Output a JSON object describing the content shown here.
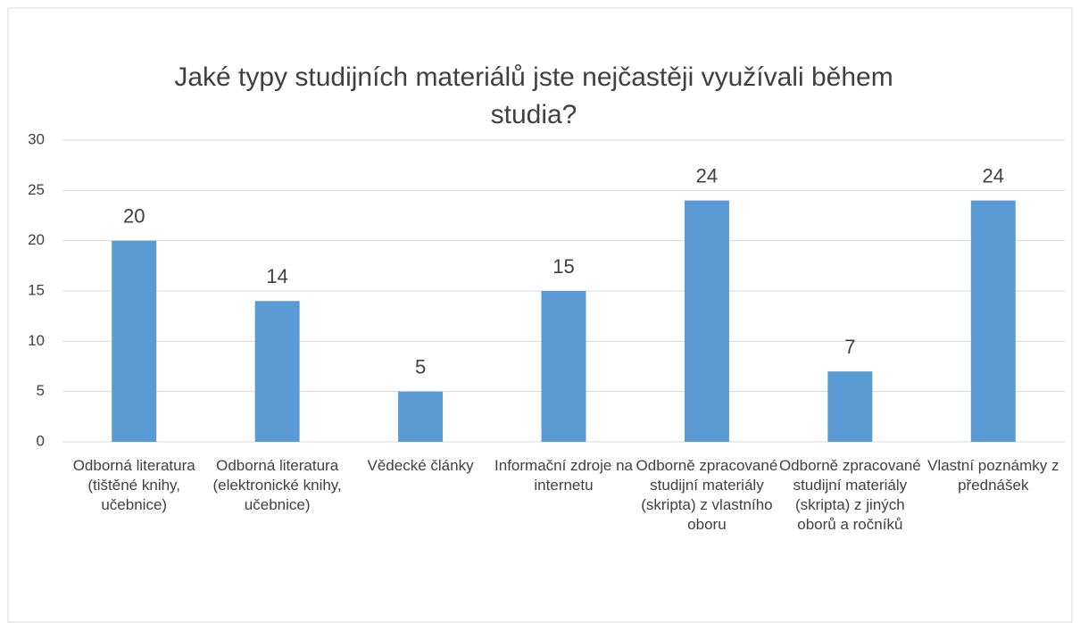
{
  "chart_data": {
    "type": "bar",
    "title": "Jaké typy studijních materiálů jste nejčastěji využívali během studia?",
    "categories": [
      "Odborná literatura (tištěné knihy, učebnice)",
      "Odborná literatura (elektronické knihy, učebnice)",
      "Vědecké články",
      "Informační zdroje na internetu",
      "Odborně zpracované studijní materiály (skripta) z vlastního oboru",
      "Odborně zpracované studijní materiály (skripta) z jiných oborů a ročníků",
      "Vlastní poznámky z přednášek"
    ],
    "values": [
      20,
      14,
      5,
      15,
      24,
      7,
      24
    ],
    "color": "#5b9bd5",
    "ylim": [
      0,
      30
    ],
    "yticks": [
      0,
      5,
      10,
      15,
      20,
      25,
      30
    ],
    "grid": true
  }
}
